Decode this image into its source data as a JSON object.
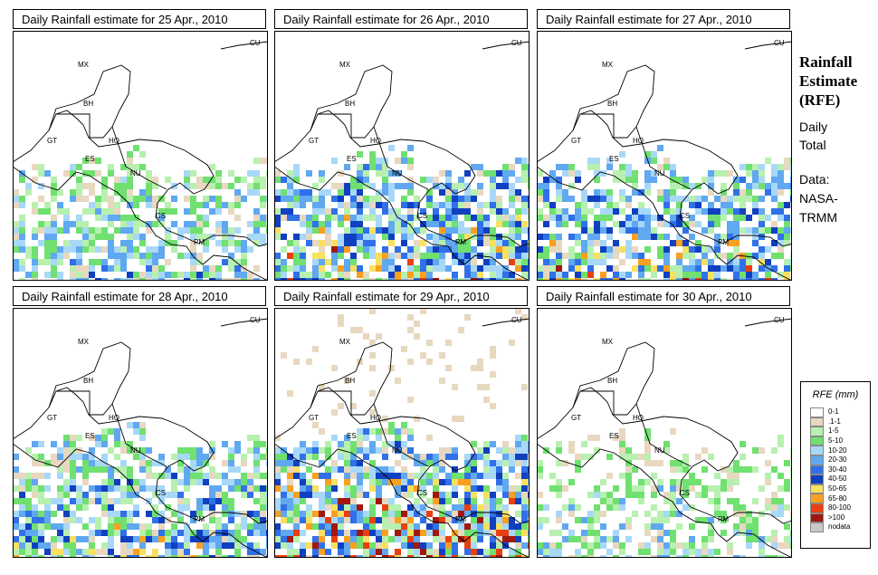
{
  "panels": [
    {
      "title": "Daily Rainfall estimate for  25 Apr., 2010",
      "seed": 11,
      "wetness": 0.55
    },
    {
      "title": "Daily Rainfall estimate for  26 Apr., 2010",
      "seed": 22,
      "wetness": 0.8
    },
    {
      "title": "Daily Rainfall estimate for  27 Apr., 2010",
      "seed": 33,
      "wetness": 0.75
    },
    {
      "title": "Daily Rainfall estimate for  28 Apr., 2010",
      "seed": 44,
      "wetness": 0.7
    },
    {
      "title": "Daily Rainfall estimate for  29 Apr., 2010",
      "seed": 55,
      "wetness": 0.9
    },
    {
      "title": "Daily Rainfall estimate for  30 Apr., 2010",
      "seed": 66,
      "wetness": 0.45
    }
  ],
  "country_labels": [
    "MX",
    "CU",
    "BH",
    "GT",
    "HO",
    "ES",
    "NU",
    "CS",
    "PM"
  ],
  "sidebar": {
    "title_lines": [
      "Rainfall",
      "Estimate",
      "(RFE)"
    ],
    "daily_total": [
      "Daily",
      "Total"
    ],
    "data_source": [
      "Data:",
      "NASA-",
      "TRMM"
    ]
  },
  "legend": {
    "title": "RFE (mm)",
    "items": [
      {
        "label": "0-1",
        "color": "#ffffff"
      },
      {
        "label": ".1-1",
        "color": "#e8d8c0"
      },
      {
        "label": "1-5",
        "color": "#b8f0b0"
      },
      {
        "label": "5-10",
        "color": "#70e070"
      },
      {
        "label": "10-20",
        "color": "#a8d8f8"
      },
      {
        "label": "20-30",
        "color": "#60a8f0"
      },
      {
        "label": "30-40",
        "color": "#3070e8"
      },
      {
        "label": "40-50",
        "color": "#1040c0"
      },
      {
        "label": "50-65",
        "color": "#f8e060"
      },
      {
        "label": "65-80",
        "color": "#f8a020"
      },
      {
        "label": "80-100",
        "color": "#e84010"
      },
      {
        "label": ">100",
        "color": "#a01810"
      },
      {
        "label": "nodata",
        "color": "#c8c8c8"
      }
    ]
  }
}
